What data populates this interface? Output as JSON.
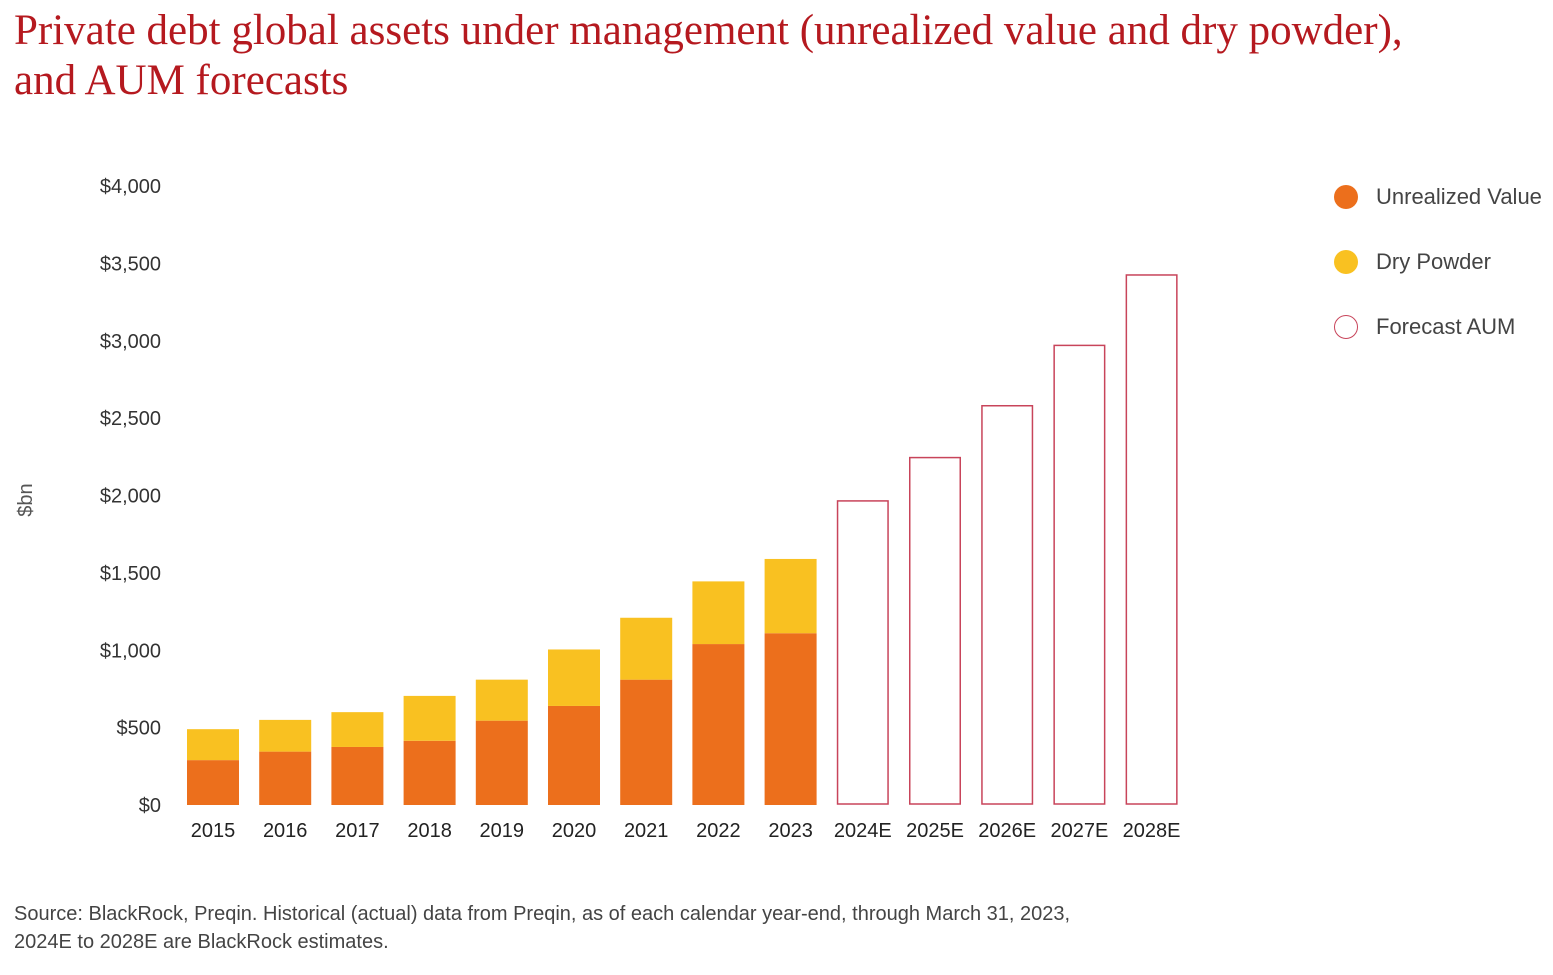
{
  "title_lines": [
    "Private debt global assets under management (unrealized value and dry powder),",
    "and AUM forecasts"
  ],
  "source_lines": [
    "Source: BlackRock, Preqin. Historical (actual) data from Preqin, as of each calendar year-end, through March 31, 2023,",
    "2024E to 2028E are BlackRock estimates."
  ],
  "colors": {
    "unrealized": "#ec6f1c",
    "dry_powder": "#f9c121",
    "forecast": "#c8445a",
    "title": "#b5191f",
    "text": "#333333"
  },
  "chart_data": {
    "type": "bar",
    "stacked": true,
    "title": "Private debt global assets under management (unrealized value and dry powder), and AUM forecasts",
    "xlabel": "",
    "ylabel": "$bn",
    "ylim": [
      0,
      4000
    ],
    "yticks": [
      0,
      500,
      1000,
      1500,
      2000,
      2500,
      3000,
      3500,
      4000
    ],
    "ytick_labels": [
      "$0",
      "$500",
      "$1,000",
      "$1,500",
      "$2,000",
      "$2,500",
      "$3,000",
      "$3,500",
      "$4,000"
    ],
    "categories": [
      "2015",
      "2016",
      "2017",
      "2018",
      "2019",
      "2020",
      "2021",
      "2022",
      "2023",
      "2024E",
      "2025E",
      "2026E",
      "2027E",
      "2028E"
    ],
    "series": [
      {
        "name": "Unrealized Value",
        "values": [
          290,
          345,
          375,
          415,
          545,
          640,
          810,
          1040,
          1110,
          null,
          null,
          null,
          null,
          null
        ]
      },
      {
        "name": "Dry Powder",
        "values": [
          200,
          205,
          225,
          290,
          265,
          365,
          400,
          405,
          480,
          null,
          null,
          null,
          null,
          null
        ]
      },
      {
        "name": "Forecast AUM",
        "values": [
          null,
          null,
          null,
          null,
          null,
          null,
          null,
          null,
          null,
          1965,
          2245,
          2580,
          2970,
          3425
        ]
      }
    ],
    "legend_position": "right",
    "grid": false
  }
}
